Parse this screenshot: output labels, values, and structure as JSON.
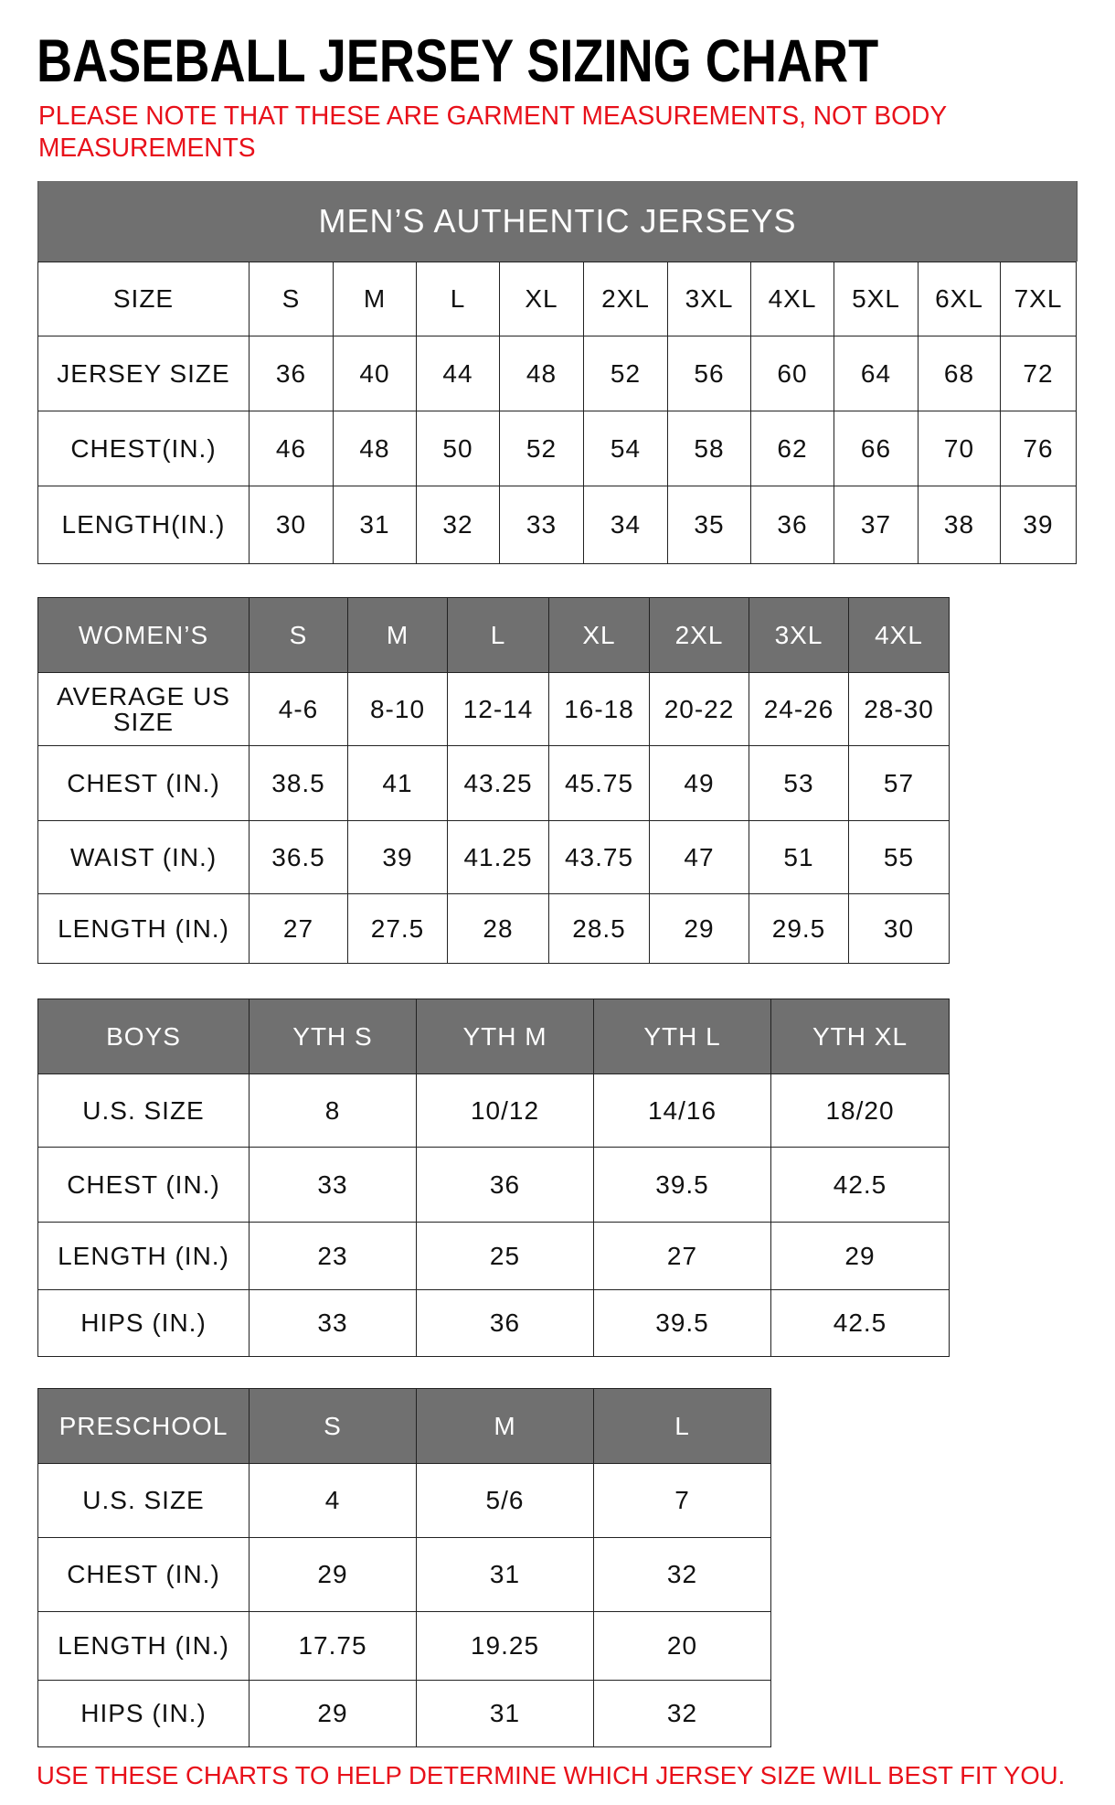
{
  "title": "BASEBALL JERSEY SIZING CHART",
  "note": "PLEASE NOTE THAT THESE ARE GARMENT MEASUREMENTS, NOT BODY MEASUREMENTS",
  "footer": "USE THESE CHARTS TO HELP DETERMINE WHICH JERSEY SIZE WILL BEST FIT YOU.",
  "colors": {
    "header_gray": "#707070",
    "note_red": "#e8101a"
  },
  "tables": {
    "men": {
      "title": "MEN’S AUTHENTIC JERSEYS",
      "header": [
        "SIZE",
        "S",
        "M",
        "L",
        "XL",
        "2XL",
        "3XL",
        "4XL",
        "5XL",
        "6XL",
        "7XL"
      ],
      "rows": [
        [
          "JERSEY SIZE",
          "36",
          "40",
          "44",
          "48",
          "52",
          "56",
          "60",
          "64",
          "68",
          "72"
        ],
        [
          "CHEST(IN.)",
          "46",
          "48",
          "50",
          "52",
          "54",
          "58",
          "62",
          "66",
          "70",
          "76"
        ],
        [
          "LENGTH(IN.)",
          "30",
          "31",
          "32",
          "33",
          "34",
          "35",
          "36",
          "37",
          "38",
          "39"
        ]
      ]
    },
    "women": {
      "header": [
        "WOMEN’S",
        "S",
        "M",
        "L",
        "XL",
        "2XL",
        "3XL",
        "4XL"
      ],
      "rows": [
        [
          "AVERAGE US SIZE",
          "4-6",
          "8-10",
          "12-14",
          "16-18",
          "20-22",
          "24-26",
          "28-30"
        ],
        [
          "CHEST (IN.)",
          "38.5",
          "41",
          "43.25",
          "45.75",
          "49",
          "53",
          "57"
        ],
        [
          "WAIST (IN.)",
          "36.5",
          "39",
          "41.25",
          "43.75",
          "47",
          "51",
          "55"
        ],
        [
          "LENGTH (IN.)",
          "27",
          "27.5",
          "28",
          "28.5",
          "29",
          "29.5",
          "30"
        ]
      ]
    },
    "boys": {
      "header": [
        "BOYS",
        "YTH S",
        "YTH M",
        "YTH L",
        "YTH XL"
      ],
      "rows": [
        [
          "U.S. SIZE",
          "8",
          "10/12",
          "14/16",
          "18/20"
        ],
        [
          "CHEST (IN.)",
          "33",
          "36",
          "39.5",
          "42.5"
        ],
        [
          "LENGTH (IN.)",
          "23",
          "25",
          "27",
          "29"
        ],
        [
          "HIPS (IN.)",
          "33",
          "36",
          "39.5",
          "42.5"
        ]
      ]
    },
    "pre": {
      "header": [
        "PRESCHOOL",
        "S",
        "M",
        "L"
      ],
      "rows": [
        [
          "U.S. SIZE",
          "4",
          "5/6",
          "7"
        ],
        [
          "CHEST (IN.)",
          "29",
          "31",
          "32"
        ],
        [
          "LENGTH (IN.)",
          "17.75",
          "19.25",
          "20"
        ],
        [
          "HIPS (IN.)",
          "29",
          "31",
          "32"
        ]
      ]
    }
  }
}
